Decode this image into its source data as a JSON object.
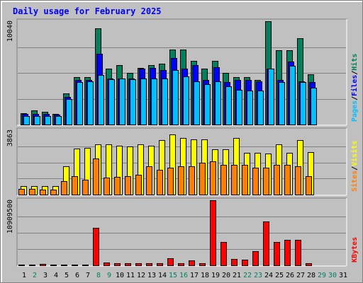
{
  "title": "Daily usage for February 2025",
  "colors": {
    "background": "#c0c0c0",
    "panel_bg": "#c0c0c0",
    "hits": "#00805c",
    "files": "#0000ff",
    "pages": "#00c0ff",
    "visits": "#ffff00",
    "sites": "#ff8000",
    "kbytes": "#ff0000",
    "title": "#0000ff",
    "weekday_label": "#000000",
    "weekend_label": "#00805c",
    "separator": "#000000"
  },
  "chart_data": [
    {
      "type": "bar",
      "name": "hits-files-pages",
      "axis_max_label": "10040",
      "ylim": [
        0,
        10040
      ],
      "legend": [
        "Pages",
        "Files",
        "Hits"
      ],
      "x": [
        1,
        2,
        3,
        4,
        5,
        6,
        7,
        8,
        9,
        10,
        11,
        12,
        13,
        14,
        15,
        16,
        17,
        18,
        19,
        20,
        21,
        22,
        23,
        24,
        25,
        26,
        27,
        28
      ],
      "series": [
        {
          "name": "Hits",
          "values": [
            1100,
            1400,
            1250,
            1000,
            3000,
            4600,
            4600,
            9350,
            5400,
            5800,
            5000,
            5500,
            5800,
            5900,
            7300,
            7300,
            6200,
            5400,
            6200,
            5000,
            4600,
            4600,
            4300,
            10040,
            7200,
            7200,
            8400,
            4900
          ]
        },
        {
          "name": "Files",
          "values": [
            1000,
            1000,
            1000,
            950,
            2700,
            4300,
            4300,
            6900,
            4450,
            4500,
            4500,
            5400,
            5500,
            5300,
            6450,
            5400,
            5800,
            4300,
            5600,
            4100,
            4300,
            4300,
            4200,
            5400,
            4300,
            6100,
            4200,
            4100
          ]
        },
        {
          "name": "Pages",
          "values": [
            850,
            850,
            850,
            850,
            2500,
            4100,
            4200,
            4800,
            4400,
            4500,
            4400,
            4500,
            4500,
            4500,
            5300,
            4700,
            4200,
            3900,
            4200,
            3700,
            3400,
            3300,
            3300,
            5400,
            4100,
            5700,
            4100,
            3600
          ]
        }
      ]
    },
    {
      "type": "bar",
      "name": "visits-sites",
      "axis_max_label": "3863",
      "ylim": [
        0,
        3863
      ],
      "legend": [
        "Sites",
        "Visits"
      ],
      "x": [
        1,
        2,
        3,
        4,
        5,
        6,
        7,
        8,
        9,
        10,
        11,
        12,
        13,
        14,
        15,
        16,
        17,
        18,
        19,
        20,
        21,
        22,
        23,
        24,
        25,
        26,
        27,
        28
      ],
      "series": [
        {
          "name": "Visits",
          "values": [
            520,
            520,
            520,
            520,
            1700,
            2760,
            2800,
            3000,
            3000,
            2950,
            2900,
            3000,
            2950,
            3260,
            3600,
            3380,
            3300,
            3320,
            2700,
            2700,
            3380,
            2500,
            2500,
            2450,
            3000,
            2500,
            3280,
            2550
          ]
        },
        {
          "name": "Sites",
          "values": [
            360,
            360,
            300,
            300,
            800,
            1100,
            900,
            2150,
            1000,
            1050,
            1100,
            1200,
            1700,
            1500,
            1600,
            1700,
            1700,
            1900,
            2000,
            1800,
            1800,
            1800,
            1600,
            1600,
            1800,
            1800,
            1700,
            1100
          ]
        }
      ]
    },
    {
      "type": "bar",
      "name": "kbytes",
      "axis_max_label": "10909500",
      "ylim": [
        0,
        10909500
      ],
      "legend": [
        "KBytes"
      ],
      "x": [
        1,
        2,
        3,
        4,
        5,
        6,
        7,
        8,
        9,
        10,
        11,
        12,
        13,
        14,
        15,
        16,
        17,
        18,
        19,
        20,
        21,
        22,
        23,
        24,
        25,
        26,
        27,
        28
      ],
      "series": [
        {
          "name": "KBytes",
          "values": [
            120000,
            120000,
            200000,
            120000,
            120000,
            120000,
            120000,
            6300000,
            450000,
            300000,
            300000,
            400000,
            400000,
            400000,
            1200000,
            350000,
            800000,
            300000,
            10909500,
            3900000,
            1100000,
            900000,
            2400000,
            7300000,
            3900000,
            4300000,
            4300000,
            400000
          ]
        }
      ]
    }
  ],
  "day_labels": [
    {
      "text": "1",
      "weekend": false
    },
    {
      "text": "2",
      "weekend": true
    },
    {
      "text": "3",
      "weekend": false
    },
    {
      "text": "4",
      "weekend": false
    },
    {
      "text": "5",
      "weekend": false
    },
    {
      "text": "6",
      "weekend": false
    },
    {
      "text": "7",
      "weekend": false
    },
    {
      "text": "8",
      "weekend": true
    },
    {
      "text": "9",
      "weekend": true
    },
    {
      "text": "10",
      "weekend": false
    },
    {
      "text": "11",
      "weekend": false
    },
    {
      "text": "12",
      "weekend": false
    },
    {
      "text": "13",
      "weekend": false
    },
    {
      "text": "14",
      "weekend": false
    },
    {
      "text": "15",
      "weekend": true
    },
    {
      "text": "16",
      "weekend": true
    },
    {
      "text": "17",
      "weekend": false
    },
    {
      "text": "18",
      "weekend": false
    },
    {
      "text": "19",
      "weekend": false
    },
    {
      "text": "20",
      "weekend": false
    },
    {
      "text": "21",
      "weekend": false
    },
    {
      "text": "22",
      "weekend": true
    },
    {
      "text": "23",
      "weekend": true
    },
    {
      "text": "24",
      "weekend": false
    },
    {
      "text": "25",
      "weekend": false
    },
    {
      "text": "26",
      "weekend": false
    },
    {
      "text": "27",
      "weekend": false
    },
    {
      "text": "28",
      "weekend": false
    },
    {
      "text": "29",
      "weekend": true
    },
    {
      "text": "30",
      "weekend": true
    },
    {
      "text": "31",
      "weekend": false
    }
  ]
}
